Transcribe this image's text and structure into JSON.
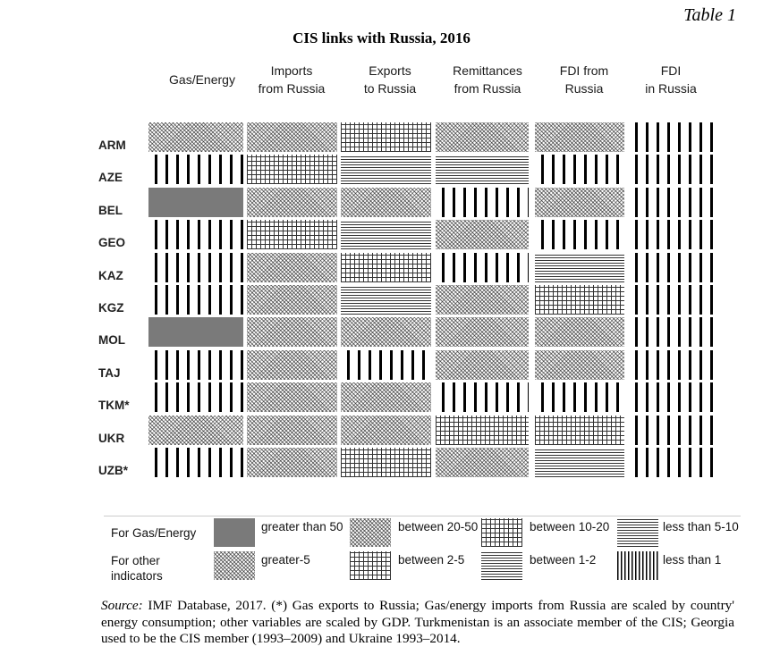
{
  "table_label": "Table 1",
  "title": "CIS links with Russia, 2016",
  "columns": [
    {
      "line1": "Gas/Energy",
      "line2": ""
    },
    {
      "line1": "Imports",
      "line2": "from Russia"
    },
    {
      "line1": "Exports",
      "line2": "to Russia"
    },
    {
      "line1": "Remittances",
      "line2": "from Russia"
    },
    {
      "line1": "FDI from",
      "line2": "Russia"
    },
    {
      "line1": "FDI",
      "line2": "in Russia"
    }
  ],
  "rows": [
    {
      "label": "ARM",
      "cells": [
        "diag",
        "diag",
        "grid",
        "diag",
        "diag",
        "vbars"
      ]
    },
    {
      "label": "AZE",
      "cells": [
        "vbars",
        "grid",
        "hlines",
        "hlines",
        "vbars",
        "vbars"
      ]
    },
    {
      "label": "BEL",
      "cells": [
        "dark",
        "diag",
        "diag",
        "vbars",
        "diag",
        "vbars"
      ]
    },
    {
      "label": "GEO",
      "cells": [
        "vbars",
        "grid",
        "hlines",
        "diag",
        "vbars",
        "vbars"
      ]
    },
    {
      "label": "KAZ",
      "cells": [
        "vbars",
        "diag",
        "grid",
        "vbars",
        "hlines",
        "vbars"
      ]
    },
    {
      "label": "KGZ",
      "cells": [
        "vbars",
        "diag",
        "hlines",
        "diag",
        "grid",
        "vbars"
      ]
    },
    {
      "label": "MOL",
      "cells": [
        "dark",
        "diag",
        "diag",
        "diag",
        "diag",
        "vbars"
      ]
    },
    {
      "label": "TAJ",
      "cells": [
        "vbars",
        "diag",
        "vbars",
        "diag",
        "diag",
        "vbars"
      ]
    },
    {
      "label": "TKM*",
      "cells": [
        "vbars",
        "diag",
        "diag",
        "vbars",
        "vbars",
        "vbars"
      ]
    },
    {
      "label": "UKR",
      "cells": [
        "diag",
        "diag",
        "diag",
        "grid",
        "grid",
        "vbars"
      ]
    },
    {
      "label": "UZB*",
      "cells": [
        "vbars",
        "diag",
        "grid",
        "diag",
        "hlines",
        "vbars"
      ]
    }
  ],
  "legend": {
    "gas_label": "For Gas/Energy",
    "other_label_line1": "For other",
    "other_label_line2": "indicators",
    "gas_items": [
      {
        "pattern": "dark",
        "text": "greater than 50"
      },
      {
        "pattern": "diag",
        "text": "between 20-50"
      },
      {
        "pattern": "grid",
        "text": "between 10-20"
      },
      {
        "pattern": "hlines",
        "text": "less than 5-10"
      }
    ],
    "other_items": [
      {
        "pattern": "diag",
        "text": "greater-5"
      },
      {
        "pattern": "grid",
        "text": "between 2-5"
      },
      {
        "pattern": "hlines",
        "text": "between 1-2"
      },
      {
        "pattern": "vthin",
        "text": "less than 1"
      }
    ]
  },
  "source": {
    "label": "Source:",
    "text": " IMF Database, 2017. (*) Gas exports to Russia; Gas/energy imports from Russia are scaled by country' energy consumption; other variables are scaled by GDP. Turkmenistan is an associate member of the CIS; Georgia used to be the CIS member (1993–2009) and Ukraine 1993–2014."
  }
}
